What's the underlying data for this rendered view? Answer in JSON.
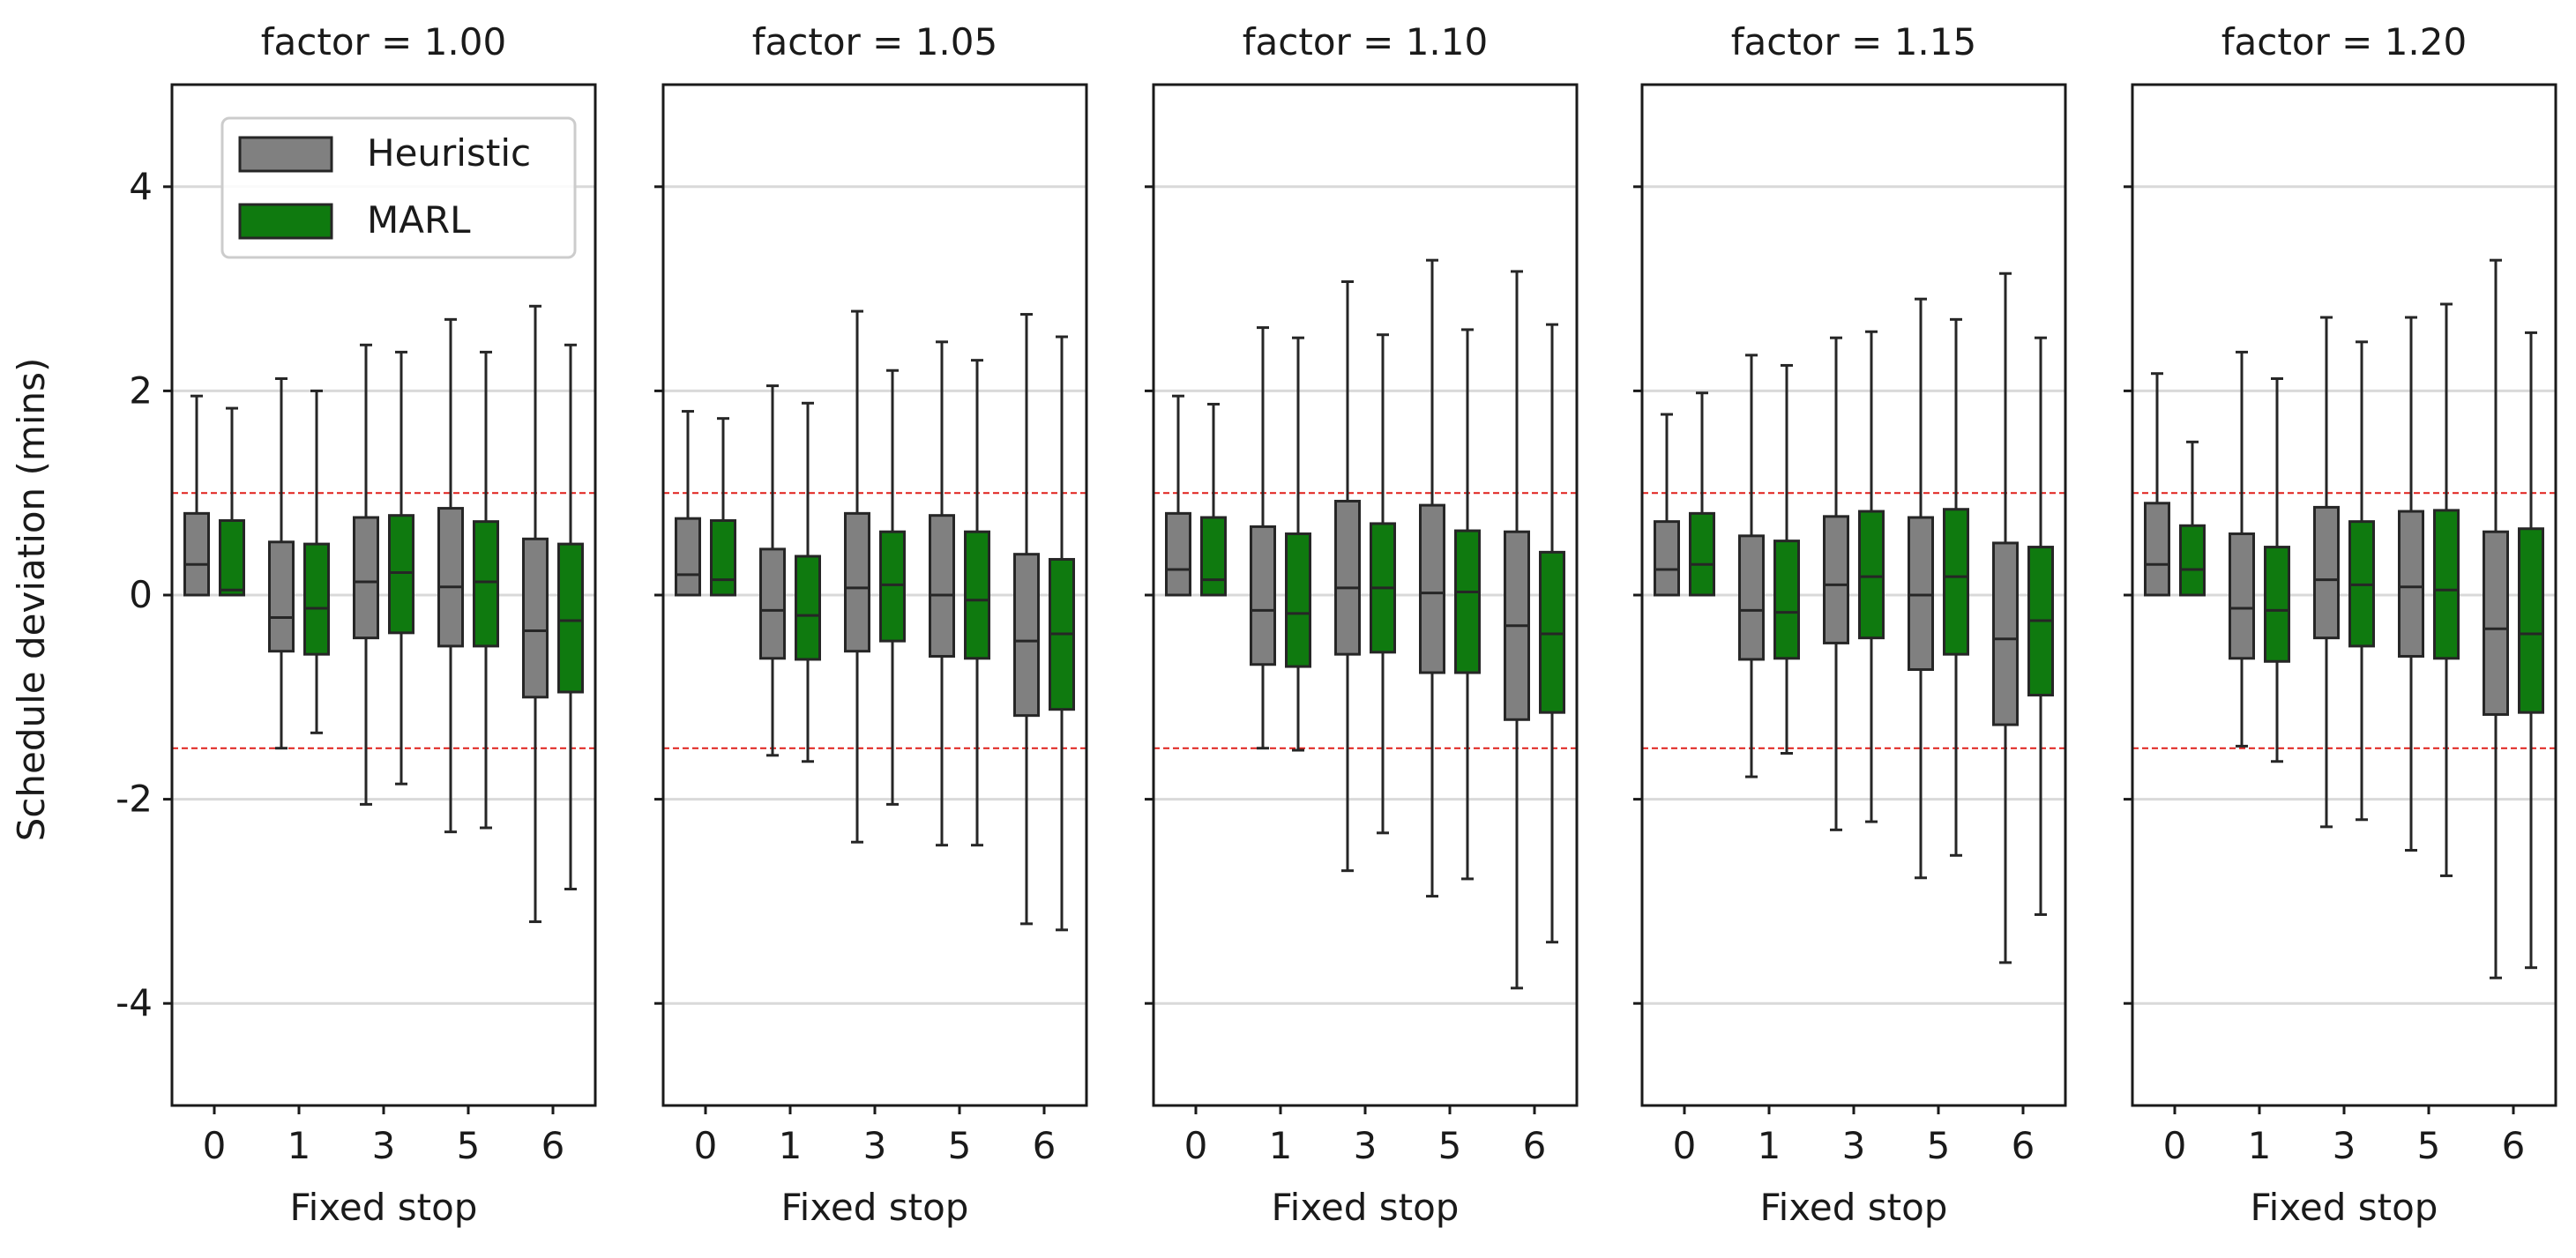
{
  "chart_data": {
    "type": "boxplot",
    "ylabel": "Schedule deviation (mins)",
    "xlabel": "Fixed stop",
    "ylim": [
      -5,
      5
    ],
    "yticks": [
      -4,
      -2,
      0,
      2,
      4
    ],
    "ytick_labels": [
      "-4",
      "-2",
      "0",
      "2",
      "4"
    ],
    "grid": "horizontal",
    "reference_lines": [
      1.0,
      -1.5
    ],
    "categories": [
      "0",
      "1",
      "3",
      "5",
      "6"
    ],
    "legend": {
      "placement": "top-left",
      "entries": [
        {
          "name": "Heuristic",
          "color": "#808080"
        },
        {
          "name": "MARL",
          "color": "#0f7a0f"
        }
      ]
    },
    "colors": {
      "heuristic": "#808080",
      "marl": "#0f7a0f",
      "reference": "#e0201c",
      "grid": "#d9d9d9",
      "edge": "#262626"
    },
    "panels": [
      {
        "title": "factor = 1.00",
        "series": [
          {
            "name": "Heuristic",
            "boxes": [
              [
                0,
                0,
                0.3,
                0.8,
                1.95
              ],
              [
                -1.5,
                -0.55,
                -0.22,
                0.52,
                2.12
              ],
              [
                -2.05,
                -0.42,
                0.13,
                0.76,
                2.45
              ],
              [
                -2.32,
                -0.5,
                0.08,
                0.85,
                2.7
              ],
              [
                -3.2,
                -1.0,
                -0.35,
                0.55,
                2.83
              ]
            ]
          },
          {
            "name": "MARL",
            "boxes": [
              [
                0,
                0,
                0.05,
                0.73,
                1.83
              ],
              [
                -1.35,
                -0.58,
                -0.13,
                0.5,
                2.0
              ],
              [
                -1.85,
                -0.37,
                0.22,
                0.78,
                2.38
              ],
              [
                -2.28,
                -0.5,
                0.13,
                0.72,
                2.38
              ],
              [
                -2.88,
                -0.95,
                -0.25,
                0.5,
                2.45
              ]
            ]
          }
        ]
      },
      {
        "title": "factor = 1.05",
        "series": [
          {
            "name": "Heuristic",
            "boxes": [
              [
                0,
                0,
                0.2,
                0.75,
                1.8
              ],
              [
                -1.57,
                -0.62,
                -0.15,
                0.45,
                2.05
              ],
              [
                -2.42,
                -0.55,
                0.07,
                0.8,
                2.78
              ],
              [
                -2.45,
                -0.6,
                0.0,
                0.78,
                2.48
              ],
              [
                -3.22,
                -1.18,
                -0.45,
                0.4,
                2.75
              ]
            ]
          },
          {
            "name": "MARL",
            "boxes": [
              [
                0,
                0,
                0.15,
                0.73,
                1.73
              ],
              [
                -1.63,
                -0.63,
                -0.2,
                0.38,
                1.88
              ],
              [
                -2.05,
                -0.45,
                0.1,
                0.62,
                2.2
              ],
              [
                -2.45,
                -0.62,
                -0.05,
                0.62,
                2.3
              ],
              [
                -3.28,
                -1.12,
                -0.38,
                0.35,
                2.53
              ]
            ]
          }
        ]
      },
      {
        "title": "factor = 1.10",
        "series": [
          {
            "name": "Heuristic",
            "boxes": [
              [
                0,
                0,
                0.25,
                0.8,
                1.95
              ],
              [
                -1.5,
                -0.68,
                -0.15,
                0.67,
                2.62
              ],
              [
                -2.7,
                -0.58,
                0.07,
                0.92,
                3.07
              ],
              [
                -2.95,
                -0.76,
                0.02,
                0.88,
                3.28
              ],
              [
                -3.85,
                -1.22,
                -0.3,
                0.62,
                3.17
              ]
            ]
          },
          {
            "name": "MARL",
            "boxes": [
              [
                0,
                0,
                0.15,
                0.76,
                1.87
              ],
              [
                -1.52,
                -0.7,
                -0.18,
                0.6,
                2.52
              ],
              [
                -2.33,
                -0.56,
                0.07,
                0.7,
                2.55
              ],
              [
                -2.78,
                -0.76,
                0.03,
                0.63,
                2.6
              ],
              [
                -3.4,
                -1.15,
                -0.38,
                0.42,
                2.65
              ]
            ]
          }
        ]
      },
      {
        "title": "factor = 1.15",
        "series": [
          {
            "name": "Heuristic",
            "boxes": [
              [
                0,
                0,
                0.25,
                0.72,
                1.77
              ],
              [
                -1.78,
                -0.63,
                -0.15,
                0.58,
                2.35
              ],
              [
                -2.3,
                -0.47,
                0.1,
                0.77,
                2.52
              ],
              [
                -2.77,
                -0.73,
                0.0,
                0.76,
                2.9
              ],
              [
                -3.6,
                -1.27,
                -0.43,
                0.51,
                3.15
              ]
            ]
          },
          {
            "name": "MARL",
            "boxes": [
              [
                0,
                0,
                0.3,
                0.8,
                1.98
              ],
              [
                -1.55,
                -0.62,
                -0.17,
                0.53,
                2.25
              ],
              [
                -2.22,
                -0.42,
                0.18,
                0.82,
                2.58
              ],
              [
                -2.55,
                -0.58,
                0.18,
                0.84,
                2.7
              ],
              [
                -3.13,
                -0.98,
                -0.25,
                0.47,
                2.52
              ]
            ]
          }
        ]
      },
      {
        "title": "factor = 1.20",
        "series": [
          {
            "name": "Heuristic",
            "boxes": [
              [
                0,
                0,
                0.3,
                0.9,
                2.17
              ],
              [
                -1.48,
                -0.62,
                -0.13,
                0.6,
                2.38
              ],
              [
                -2.27,
                -0.42,
                0.15,
                0.86,
                2.72
              ],
              [
                -2.5,
                -0.6,
                0.08,
                0.82,
                2.72
              ],
              [
                -3.75,
                -1.17,
                -0.33,
                0.62,
                3.28
              ]
            ]
          },
          {
            "name": "MARL",
            "boxes": [
              [
                0,
                0,
                0.25,
                0.68,
                1.5
              ],
              [
                -1.63,
                -0.65,
                -0.15,
                0.47,
                2.12
              ],
              [
                -2.2,
                -0.5,
                0.1,
                0.72,
                2.48
              ],
              [
                -2.75,
                -0.62,
                0.05,
                0.83,
                2.85
              ],
              [
                -3.65,
                -1.15,
                -0.38,
                0.65,
                2.57
              ]
            ]
          }
        ]
      }
    ]
  }
}
